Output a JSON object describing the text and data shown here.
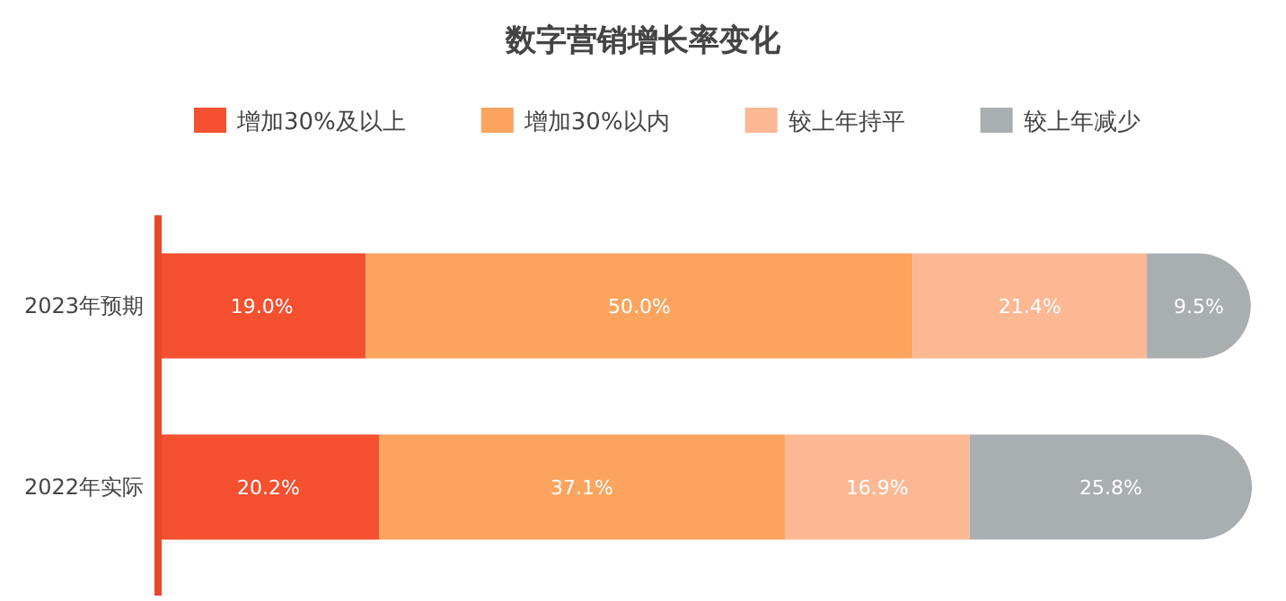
{
  "chart_data": {
    "type": "bar",
    "orientation": "horizontal",
    "stacked": true,
    "title": "数字营销增长率变化",
    "categories": [
      "2023年预期",
      "2022年实际"
    ],
    "series": [
      {
        "name": "增加30%及以上",
        "color": "#f5502f",
        "values": [
          19.0,
          20.2
        ],
        "value_labels": [
          "19.0%",
          "20.2%"
        ]
      },
      {
        "name": "增加30%以内",
        "color": "#fba45e",
        "values": [
          50.0,
          37.1
        ],
        "value_labels": [
          "50.0%",
          "37.1%"
        ]
      },
      {
        "name": "较上年持平",
        "color": "#fbb893",
        "values": [
          21.4,
          16.9
        ],
        "value_labels": [
          "21.4%",
          "16.9%"
        ]
      },
      {
        "name": "较上年减少",
        "color": "#a9aeb0",
        "values": [
          9.5,
          25.8
        ],
        "value_labels": [
          "9.5%",
          "25.8%"
        ]
      }
    ],
    "legend": "top",
    "tick_labels": "y"
  }
}
